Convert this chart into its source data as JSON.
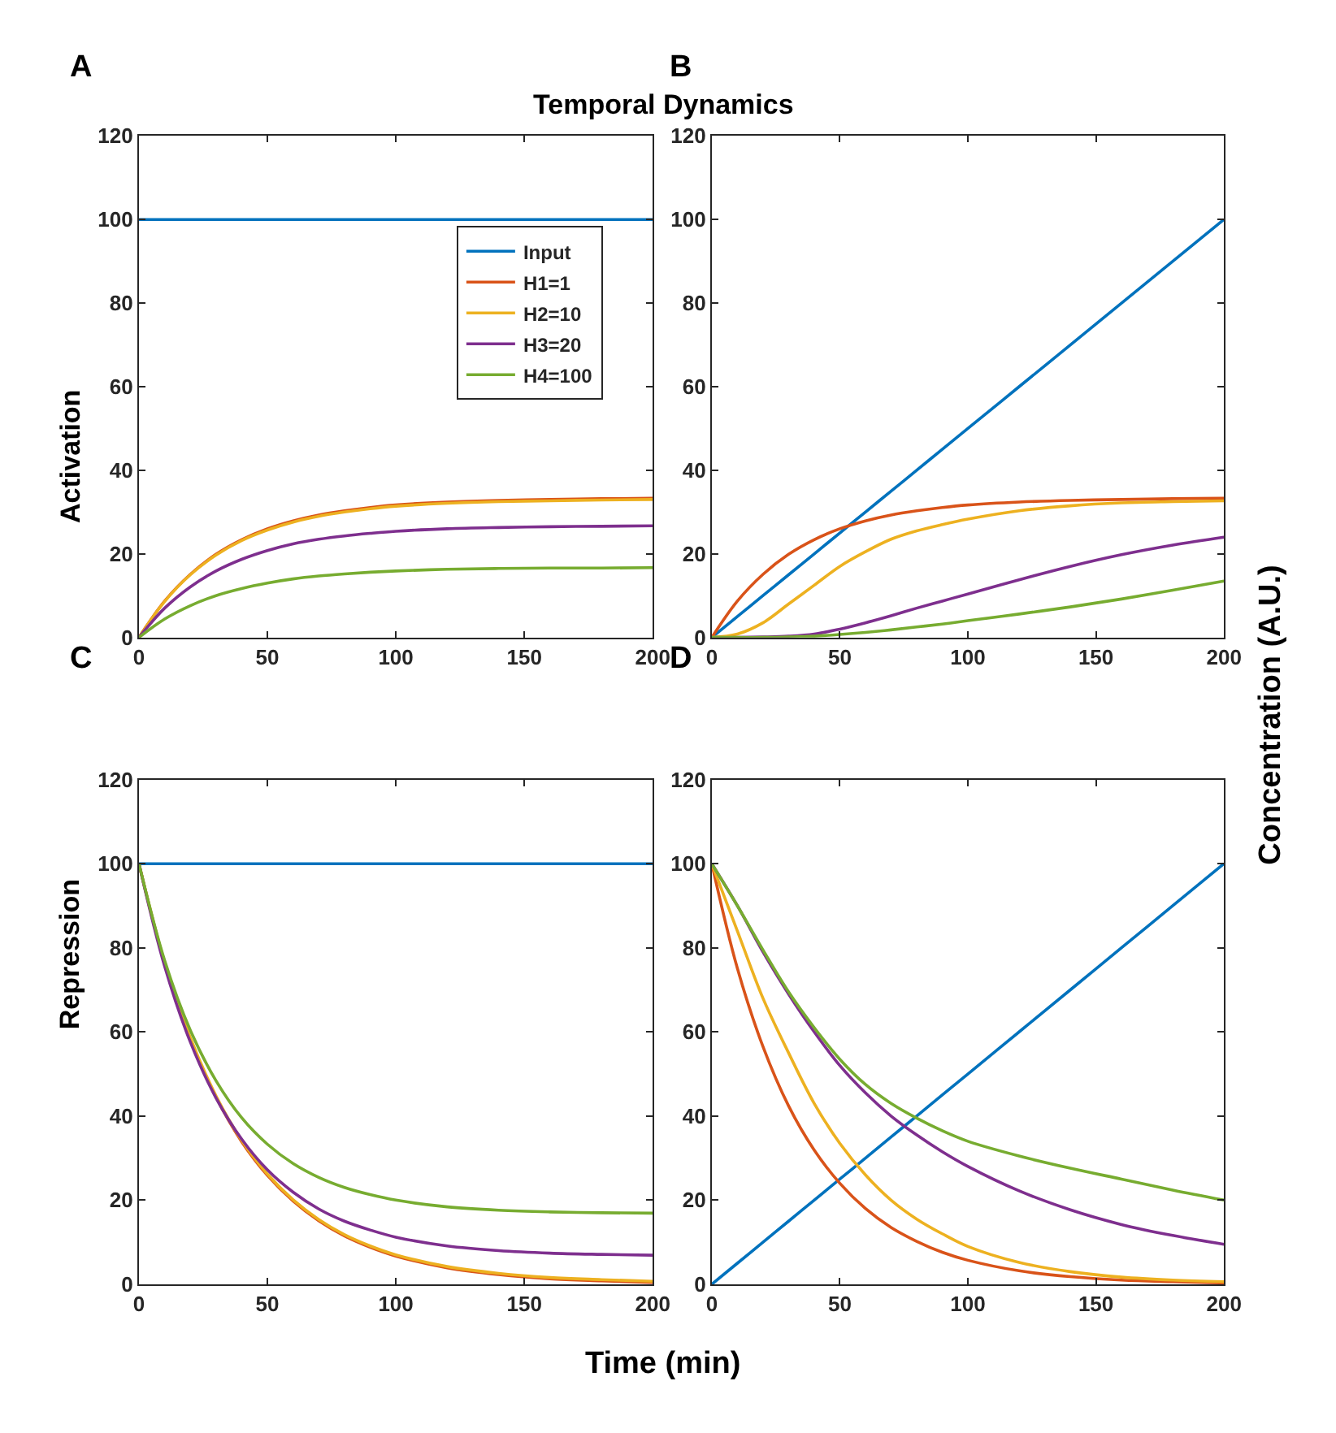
{
  "chart_data": [
    {
      "type": "line",
      "title": "Temporal Dynamics",
      "ylabel": "Activation",
      "annotations": [
        "A"
      ],
      "legend": "top right",
      "marker": "none",
      "line_style": "solid",
      "x": [
        0,
        10,
        20,
        30,
        40,
        50,
        60,
        70,
        80,
        90,
        100,
        120,
        140,
        160,
        180,
        200
      ],
      "xlim": [
        0,
        200
      ],
      "xticks": [
        0,
        50,
        100,
        150,
        200
      ],
      "ylim": [
        0,
        120
      ],
      "yticks": [
        0,
        20,
        40,
        60,
        80,
        100,
        120
      ],
      "series": [
        {
          "name": "Input",
          "color": "#0072bd",
          "values": [
            100,
            100,
            100,
            100,
            100,
            100,
            100,
            100,
            100,
            100,
            100,
            100,
            100,
            100,
            100,
            100
          ]
        },
        {
          "name": "H1=1",
          "color": "#d95319",
          "values": [
            0,
            8.7,
            15.1,
            19.9,
            23.4,
            26.0,
            27.9,
            29.3,
            30.3,
            31.1,
            31.7,
            32.4,
            32.8,
            33.0,
            33.2,
            33.3
          ]
        },
        {
          "name": "H2=10",
          "color": "#edb120",
          "values": [
            0,
            8.6,
            15.0,
            19.7,
            23.2,
            25.7,
            27.6,
            29.0,
            30.0,
            30.8,
            31.4,
            32.1,
            32.5,
            32.7,
            32.9,
            33.0
          ]
        },
        {
          "name": "H3=20",
          "color": "#7e2f8e",
          "values": [
            0,
            7.0,
            12.1,
            15.9,
            18.7,
            20.8,
            22.4,
            23.5,
            24.3,
            24.9,
            25.4,
            26.0,
            26.3,
            26.5,
            26.6,
            26.7
          ]
        },
        {
          "name": "H4=100",
          "color": "#77ac30",
          "values": [
            0,
            4.4,
            7.6,
            10.0,
            11.7,
            13.0,
            14.0,
            14.7,
            15.2,
            15.6,
            15.9,
            16.3,
            16.5,
            16.6,
            16.6,
            16.7
          ]
        }
      ]
    },
    {
      "type": "line",
      "annotations": [
        "B",
        "Concentration (A.U.)"
      ],
      "marker": "none",
      "line_style": "solid",
      "x": [
        0,
        10,
        20,
        30,
        40,
        50,
        60,
        70,
        80,
        90,
        100,
        120,
        140,
        160,
        180,
        200
      ],
      "xlim": [
        0,
        200
      ],
      "xticks": [
        0,
        50,
        100,
        150,
        200
      ],
      "ylim": [
        0,
        120
      ],
      "yticks": [
        0,
        20,
        40,
        60,
        80,
        100,
        120
      ],
      "series": [
        {
          "color": "#0072bd",
          "values": [
            0,
            5,
            10,
            15,
            20,
            25,
            30,
            35,
            40,
            45,
            50,
            60,
            70,
            80,
            90,
            100
          ]
        },
        {
          "color": "#d95319",
          "values": [
            0,
            8.7,
            15.1,
            19.9,
            23.4,
            26.0,
            27.9,
            29.3,
            30.3,
            31.1,
            31.7,
            32.4,
            32.8,
            33.0,
            33.2,
            33.3
          ]
        },
        {
          "color": "#edb120",
          "values": [
            0,
            0.8,
            3.5,
            8,
            12.5,
            17,
            20.5,
            23.5,
            25.5,
            27,
            28.3,
            30.3,
            31.5,
            32.2,
            32.5,
            32.7
          ]
        },
        {
          "color": "#7e2f8e",
          "values": [
            0,
            0,
            0.1,
            0.3,
            0.8,
            2.0,
            3.5,
            5.2,
            7.0,
            8.7,
            10.4,
            13.8,
            17.0,
            19.8,
            22.1,
            24.0
          ]
        },
        {
          "color": "#77ac30",
          "values": [
            0,
            0,
            0,
            0.1,
            0.3,
            0.7,
            1.2,
            1.8,
            2.5,
            3.2,
            4.0,
            5.6,
            7.3,
            9.2,
            11.3,
            13.5
          ]
        }
      ]
    },
    {
      "type": "line",
      "ylabel": "Repression",
      "xlabel": "Time (min)",
      "annotations": [
        "C"
      ],
      "marker": "none",
      "line_style": "solid",
      "x": [
        0,
        10,
        20,
        30,
        40,
        50,
        60,
        70,
        80,
        90,
        100,
        120,
        140,
        160,
        180,
        200
      ],
      "xlim": [
        0,
        200
      ],
      "xticks": [
        0,
        50,
        100,
        150,
        200
      ],
      "ylim": [
        0,
        120
      ],
      "yticks": [
        0,
        20,
        40,
        60,
        80,
        100,
        120
      ],
      "series": [
        {
          "color": "#0072bd",
          "values": [
            100,
            100,
            100,
            100,
            100,
            100,
            100,
            100,
            100,
            100,
            100,
            100,
            100,
            100,
            100,
            100
          ]
        },
        {
          "color": "#d95319",
          "values": [
            100,
            76.3,
            58.3,
            44.5,
            33.9,
            25.9,
            19.8,
            15.1,
            11.5,
            8.8,
            6.7,
            3.9,
            2.3,
            1.3,
            0.8,
            0.4
          ]
        },
        {
          "color": "#edb120",
          "values": [
            100,
            76.5,
            58.6,
            44.8,
            34.2,
            26.2,
            20.1,
            15.4,
            11.8,
            9.1,
            7.0,
            4.2,
            2.6,
            1.6,
            1.1,
            0.7
          ]
        },
        {
          "color": "#7e2f8e",
          "values": [
            100,
            75.6,
            57.6,
            44.3,
            34.5,
            27.2,
            21.9,
            17.9,
            15.0,
            12.9,
            11.2,
            9.1,
            8.0,
            7.4,
            7.1,
            6.9
          ]
        },
        {
          "color": "#77ac30",
          "values": [
            100,
            77.0,
            60.4,
            48.4,
            39.6,
            33.3,
            28.7,
            25.4,
            23.0,
            21.3,
            20.0,
            18.4,
            17.6,
            17.2,
            17.0,
            16.9
          ]
        }
      ]
    },
    {
      "type": "line",
      "annotations": [
        "D"
      ],
      "marker": "none",
      "line_style": "solid",
      "x": [
        0,
        10,
        20,
        30,
        40,
        50,
        60,
        70,
        80,
        90,
        100,
        120,
        140,
        160,
        180,
        200
      ],
      "xlim": [
        0,
        200
      ],
      "xticks": [
        0,
        50,
        100,
        150,
        200
      ],
      "ylim": [
        0,
        120
      ],
      "yticks": [
        0,
        20,
        40,
        60,
        80,
        100,
        120
      ],
      "series": [
        {
          "color": "#0072bd",
          "values": [
            0,
            5,
            10,
            15,
            20,
            25,
            30,
            35,
            40,
            45,
            50,
            60,
            70,
            80,
            90,
            100
          ]
        },
        {
          "color": "#d95319",
          "values": [
            100,
            75.1,
            56.5,
            42.4,
            31.9,
            24.0,
            18.0,
            13.5,
            10.2,
            7.6,
            5.7,
            3.2,
            1.8,
            1.0,
            0.6,
            0.3
          ]
        },
        {
          "color": "#edb120",
          "values": [
            100,
            84,
            68,
            55,
            43,
            33.5,
            26,
            20,
            15.5,
            12,
            9,
            5.2,
            3,
            1.7,
            1,
            0.6
          ]
        },
        {
          "color": "#7e2f8e",
          "values": [
            100,
            90,
            79,
            69,
            60,
            52,
            45.5,
            40,
            35.5,
            31.5,
            28,
            22.2,
            17.7,
            14.2,
            11.6,
            9.5
          ]
        },
        {
          "color": "#77ac30",
          "values": [
            100,
            90,
            79.5,
            69.5,
            61,
            53.5,
            47.5,
            43,
            39.5,
            36.5,
            34,
            30.5,
            27.6,
            25,
            22.4,
            20
          ]
        }
      ]
    }
  ]
}
